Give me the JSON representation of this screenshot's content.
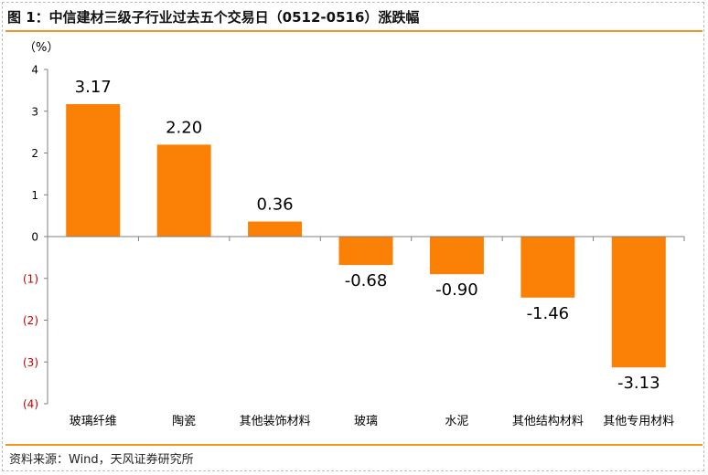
{
  "header": {
    "title": "图 1：中信建材三级子行业过去五个交易日（0512-0516）涨跌幅"
  },
  "footer": {
    "source": "资料来源：Wind，天风证券研究所"
  },
  "colors": {
    "bar": "#fa8105",
    "accent_rule": "#f39423",
    "negative_tick": "#c00000"
  },
  "chart_data": {
    "type": "bar",
    "title": "",
    "ylabel": "（%）",
    "xlabel": "",
    "categories": [
      "玻璃纤维",
      "陶瓷",
      "其他装饰材料",
      "玻璃",
      "水泥",
      "其他结构材料",
      "其他专用材料"
    ],
    "values": [
      3.17,
      2.2,
      0.36,
      -0.68,
      -0.9,
      -1.46,
      -3.13
    ],
    "data_labels": [
      "3.17",
      "2.20",
      "0.36",
      "-0.68",
      "-0.90",
      "-1.46",
      "-3.13"
    ],
    "ylim": [
      -4,
      4
    ],
    "yticks": [
      4,
      3,
      2,
      1,
      0,
      -1,
      -2,
      -3,
      -4
    ],
    "ytick_labels": [
      "4",
      "3",
      "2",
      "1",
      "0",
      "(1)",
      "(2)",
      "(3)",
      "(4)"
    ],
    "grid": false,
    "legend": "none"
  }
}
